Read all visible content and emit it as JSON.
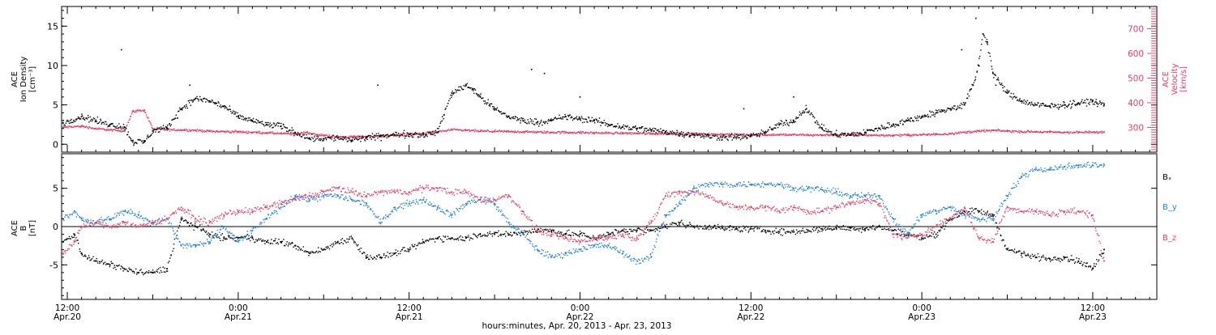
{
  "x_axis": {
    "title": "hours:minutes, Apr. 20, 2013 - Apr. 23, 2013",
    "ticks": [
      {
        "hour": 12,
        "time": "12:00",
        "date": "Apr.20"
      },
      {
        "hour": 24,
        "time": "0:00",
        "date": "Apr.21"
      },
      {
        "hour": 36,
        "time": "12:00",
        "date": "Apr.21"
      },
      {
        "hour": 48,
        "time": "0:00",
        "date": "Apr.22"
      },
      {
        "hour": 60,
        "time": "12:00",
        "date": "Apr.22"
      },
      {
        "hour": 72,
        "time": "0:00",
        "date": "Apr.23"
      },
      {
        "hour": 84,
        "time": "12:00",
        "date": "Apr.23"
      }
    ]
  },
  "chart_data": [
    {
      "type": "scatter",
      "xlabel": "hours:minutes, Apr. 20, 2013 - Apr. 23, 2013",
      "xlim": [
        11.6,
        88.5
      ],
      "x_units": "hours since Apr. 20, 2013 0:00",
      "grid": false,
      "left_axis": {
        "label_lines": [
          "ACE",
          "Ion Density",
          "[cm⁻³]"
        ],
        "ylim": [
          -1,
          17.5
        ],
        "ticks": [
          0,
          5,
          10,
          15
        ]
      },
      "right_axis": {
        "label_lines": [
          "ACE",
          "Velocity",
          "[km/s]"
        ],
        "ylim": [
          200,
          790
        ],
        "ticks": [
          300,
          400,
          500,
          600,
          700
        ]
      },
      "series": [
        {
          "name": "Ion Density",
          "color": "#000000",
          "axis": "left",
          "x": [
            11.7,
            13,
            14,
            15,
            16,
            16.6,
            17.4,
            18.0,
            19,
            20,
            21,
            22,
            23,
            24,
            25,
            26,
            27,
            28,
            29,
            30,
            31,
            32,
            33,
            34,
            35,
            36,
            37,
            38,
            39,
            40,
            40.5,
            41,
            42,
            43,
            44,
            45,
            46,
            47,
            48,
            49,
            50,
            51,
            52,
            53,
            54,
            55,
            56,
            57,
            58,
            59,
            60,
            61,
            62,
            63,
            63.9,
            65,
            66,
            67,
            68,
            69,
            70,
            71,
            72,
            73,
            74,
            75,
            75.6,
            76,
            76.3,
            76.6,
            77,
            78,
            79,
            80,
            81,
            82,
            83,
            84,
            84.3,
            84.8
          ],
          "y": [
            2.7,
            3.5,
            3.0,
            2.5,
            2.2,
            0.3,
            0.3,
            1.7,
            2.0,
            4.5,
            5.8,
            5.5,
            4.8,
            3.5,
            3.0,
            2.5,
            2.3,
            1.5,
            0.8,
            0.7,
            0.8,
            0.5,
            0.8,
            1.0,
            1.2,
            1.3,
            1.2,
            1.5,
            6.5,
            7.5,
            7.0,
            6.0,
            4.5,
            3.5,
            3.0,
            2.8,
            3.0,
            3.5,
            3.2,
            3.0,
            2.5,
            2.2,
            2.0,
            1.8,
            1.6,
            1.4,
            1.2,
            1.0,
            0.9,
            0.9,
            1.0,
            1.5,
            2.5,
            3.0,
            4.5,
            2.0,
            1.2,
            1.2,
            1.5,
            2.0,
            2.5,
            3.0,
            3.5,
            4.0,
            4.5,
            5.0,
            7.5,
            10.0,
            14.0,
            13.0,
            9.0,
            6.5,
            5.5,
            5.0,
            4.8,
            5.0,
            5.2,
            5.5,
            5.2,
            5.0
          ]
        },
        {
          "name": "Velocity",
          "color": "#e83c64",
          "axis": "right",
          "x": [
            11.7,
            13,
            14,
            15,
            16,
            16.6,
            17.4,
            18.0,
            19,
            20,
            21,
            22,
            23,
            24,
            25,
            26,
            27,
            28,
            28.8,
            29.5,
            30,
            31,
            32,
            33,
            34,
            35,
            36,
            37,
            38,
            39,
            40,
            41,
            42,
            43,
            44,
            45,
            46,
            47,
            48,
            49,
            50,
            51,
            52,
            53,
            54,
            55,
            56,
            57,
            58,
            59,
            60,
            61,
            62,
            63,
            64,
            65,
            66,
            67,
            68,
            69,
            70,
            71,
            72,
            73,
            74,
            75,
            76,
            77,
            78,
            79,
            80,
            81,
            82,
            83,
            84,
            84.8
          ],
          "y": [
            300,
            305,
            295,
            290,
            285,
            365,
            370,
            295,
            290,
            290,
            288,
            285,
            283,
            282,
            280,
            278,
            275,
            273,
            280,
            270,
            268,
            262,
            262,
            263,
            265,
            268,
            272,
            275,
            282,
            290,
            288,
            285,
            284,
            283,
            282,
            281,
            280,
            280,
            279,
            278,
            277,
            277,
            276,
            275,
            275,
            274,
            273,
            272,
            272,
            271,
            271,
            270,
            270,
            270,
            269,
            269,
            270,
            270,
            269,
            268,
            268,
            269,
            270,
            272,
            275,
            280,
            285,
            288,
            285,
            283,
            282,
            281,
            280,
            280,
            280,
            281
          ]
        }
      ]
    },
    {
      "type": "scatter",
      "xlabel": "hours:minutes, Apr. 20, 2013 - Apr. 23, 2013",
      "xlim": [
        11.6,
        88.5
      ],
      "x_units": "hours since Apr. 20, 2013 0:00",
      "grid": false,
      "zero_line": true,
      "left_axis": {
        "label_lines": [
          "ACE",
          "B",
          "[nT]"
        ],
        "ylim": [
          -9.5,
          9.5
        ],
        "ticks": [
          -5,
          0,
          5
        ]
      },
      "series": [
        {
          "name": "Bₓ",
          "color": "#000000",
          "x": [
            11.7,
            12.5,
            13,
            14,
            15,
            16,
            17,
            18,
            19,
            20,
            21,
            22,
            23,
            24,
            25,
            26,
            27,
            28,
            29,
            30,
            31,
            32,
            33,
            34,
            35,
            36,
            37,
            38,
            39,
            40,
            41,
            42,
            43,
            44,
            45,
            46,
            47,
            48,
            49,
            50,
            51,
            52,
            53,
            54,
            55,
            56,
            57,
            58,
            59,
            60,
            61,
            62,
            63,
            64,
            65,
            66,
            67,
            68,
            69,
            70,
            71,
            72,
            73,
            74,
            75,
            76,
            77,
            78,
            79,
            80,
            81,
            82,
            83,
            84,
            84.8
          ],
          "y": [
            -2.0,
            -1.0,
            -3.5,
            -4.5,
            -5.0,
            -5.5,
            -6.0,
            -6.0,
            -5.5,
            1.0,
            0.0,
            -1.0,
            -1.5,
            -1.5,
            -1.5,
            -2.0,
            -2.0,
            -2.5,
            -3.5,
            -3.0,
            -2.0,
            -1.5,
            -4.0,
            -4.0,
            -3.5,
            -3.0,
            -2.0,
            -1.5,
            -1.5,
            -1.5,
            -1.0,
            -1.0,
            -1.0,
            -0.8,
            -0.5,
            -0.5,
            -1.0,
            -1.0,
            -1.5,
            -1.0,
            -0.5,
            -0.5,
            -0.5,
            0.0,
            0.5,
            0.0,
            0.0,
            -0.2,
            -0.3,
            -0.3,
            -0.5,
            -0.7,
            -0.7,
            -0.5,
            -0.3,
            -0.2,
            -0.2,
            -0.3,
            0.0,
            -0.5,
            -1.0,
            -1.5,
            -1.0,
            1.0,
            2.0,
            2.0,
            1.5,
            -3.0,
            -3.5,
            -4.0,
            -4.2,
            -4.0,
            -4.5,
            -5.5,
            -3.0
          ]
        },
        {
          "name": "B_y",
          "color": "#1f80e0",
          "x": [
            11.7,
            12.5,
            13,
            14,
            15,
            16,
            17,
            18,
            19,
            20,
            21,
            22,
            23,
            24,
            25,
            26,
            27,
            28,
            29,
            30,
            31,
            32,
            33,
            34,
            35,
            36,
            37,
            38,
            39,
            40,
            41,
            42,
            43,
            44,
            45,
            46,
            47,
            48,
            49,
            50,
            51,
            52,
            53,
            54,
            55,
            56,
            57,
            58,
            59,
            60,
            61,
            62,
            63,
            64,
            65,
            66,
            67,
            68,
            69,
            70,
            71,
            72,
            73,
            74,
            75,
            76,
            77,
            78,
            79,
            80,
            81,
            82,
            83,
            84,
            84.8
          ],
          "y": [
            1.0,
            2.0,
            1.0,
            0.5,
            1.0,
            2.0,
            1.5,
            0.5,
            1.0,
            -2.5,
            -2.5,
            -2.0,
            0.0,
            -2.0,
            -0.5,
            1.0,
            2.5,
            4.0,
            3.5,
            4.0,
            4.0,
            3.5,
            3.0,
            0.5,
            2.5,
            3.0,
            3.5,
            2.5,
            1.5,
            3.0,
            3.5,
            3.0,
            0.5,
            -1.0,
            -3.0,
            -4.0,
            -3.5,
            -3.0,
            -2.5,
            -2.5,
            -3.5,
            -4.5,
            -4.0,
            1.5,
            3.0,
            5.0,
            5.5,
            5.5,
            5.5,
            5.5,
            5.5,
            5.5,
            5.0,
            5.0,
            4.8,
            4.5,
            4.0,
            4.0,
            4.0,
            1.0,
            -1.0,
            1.5,
            2.0,
            2.5,
            1.5,
            1.0,
            1.0,
            4.0,
            6.5,
            7.5,
            7.5,
            7.8,
            8.0,
            8.0,
            8.0
          ]
        },
        {
          "name": "B_z",
          "color": "#e83c64",
          "x": [
            11.7,
            12.5,
            13,
            14,
            15,
            16,
            17,
            18,
            19,
            20,
            21,
            22,
            23,
            24,
            25,
            26,
            27,
            28,
            29,
            30,
            31,
            32,
            33,
            34,
            35,
            36,
            37,
            38,
            39,
            40,
            41,
            42,
            43,
            44,
            45,
            46,
            47,
            48,
            49,
            50,
            51,
            52,
            53,
            54,
            55,
            56,
            57,
            58,
            59,
            60,
            61,
            62,
            63,
            64,
            65,
            66,
            67,
            68,
            69,
            70,
            71,
            72,
            73,
            74,
            75,
            76,
            77,
            78,
            79,
            80,
            81,
            82,
            83,
            84,
            84.8
          ],
          "y": [
            -3.5,
            -2.0,
            0.0,
            0.5,
            0.0,
            0.5,
            0.0,
            0.5,
            1.0,
            2.5,
            1.0,
            0.5,
            1.5,
            2.0,
            2.0,
            2.5,
            3.0,
            3.5,
            4.0,
            4.5,
            5.0,
            4.5,
            4.0,
            4.5,
            4.5,
            4.5,
            5.0,
            5.0,
            4.5,
            4.5,
            3.5,
            3.5,
            4.0,
            2.0,
            -0.5,
            -1.0,
            -1.5,
            -2.0,
            -1.5,
            -1.5,
            -1.0,
            -1.5,
            0.5,
            4.0,
            4.5,
            4.5,
            4.0,
            3.0,
            2.5,
            2.5,
            2.5,
            2.0,
            2.5,
            2.0,
            2.0,
            2.5,
            3.0,
            3.5,
            3.0,
            -1.0,
            -1.5,
            -1.0,
            0.0,
            1.0,
            2.5,
            -1.5,
            -2.0,
            2.5,
            2.0,
            2.0,
            1.5,
            2.0,
            2.0,
            1.5,
            -4.5
          ]
        }
      ]
    }
  ]
}
